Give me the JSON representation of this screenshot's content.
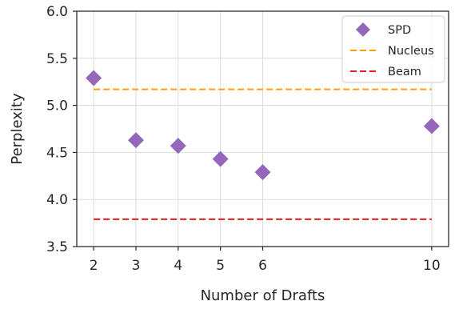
{
  "chart_data": {
    "type": "scatter",
    "xlabel": "Number of Drafts",
    "ylabel": "Perplexity",
    "xlim": [
      1.6,
      10.4
    ],
    "ylim": [
      3.5,
      6.0
    ],
    "x_ticks": [
      2,
      3,
      4,
      5,
      6,
      10
    ],
    "y_ticks": [
      "3.5",
      "4.0",
      "4.5",
      "5.0",
      "5.5",
      "6.0"
    ],
    "grid": true,
    "legend_position": "top-right",
    "series": [
      {
        "name": "SPD",
        "kind": "scatter",
        "marker": "diamond",
        "color": "#9467bd",
        "x": [
          2,
          3,
          4,
          5,
          6,
          10
        ],
        "y": [
          5.29,
          4.63,
          4.57,
          4.43,
          4.29,
          4.78
        ]
      },
      {
        "name": "Nucleus",
        "kind": "hline",
        "style": "dashed",
        "color": "#ff9f0f",
        "x": [
          2,
          10
        ],
        "y": 5.17
      },
      {
        "name": "Beam",
        "kind": "hline",
        "style": "dashed",
        "color": "#e41a1c",
        "x": [
          2,
          10
        ],
        "y": 3.79
      }
    ]
  }
}
